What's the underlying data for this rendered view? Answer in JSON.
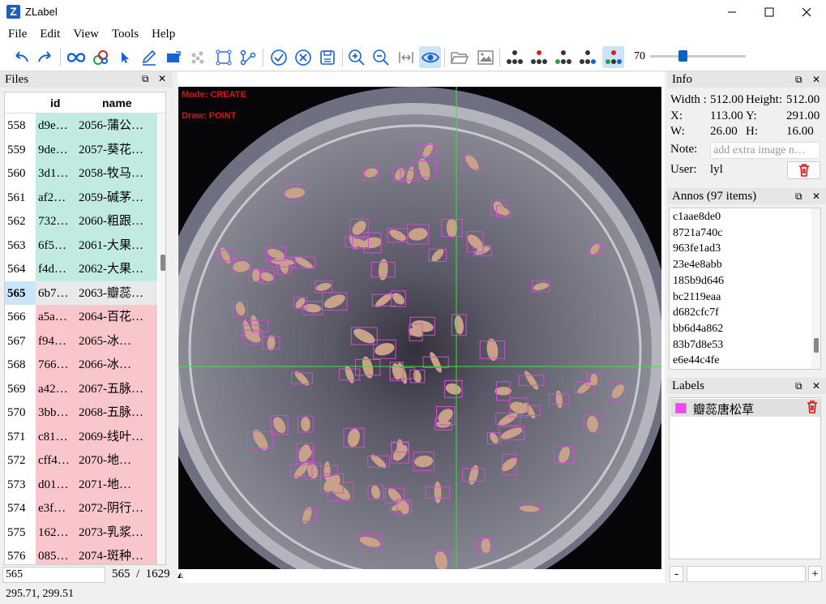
{
  "window": {
    "title": "ZLabel",
    "icon_letter": "Z"
  },
  "menu": [
    "File",
    "Edit",
    "View",
    "Tools",
    "Help"
  ],
  "toolbar": {
    "icons": [
      "undo-icon",
      "redo-icon",
      "infinity-icon",
      "tool-icon",
      "select-arrow-icon",
      "pencil-icon",
      "rectangle-icon",
      "points-icon",
      "bbox-icon",
      "polyline-icon",
      "check-icon",
      "cancel-icon",
      "save-icon",
      "zoom-in-icon",
      "zoom-out-icon",
      "fit-width-icon",
      "eye-icon",
      "folder-open-icon",
      "image-icon"
    ],
    "zoom_value": "70",
    "zoom_fraction": 0.3,
    "accent": "#1a62d2"
  },
  "files": {
    "title": "Files",
    "columns": [
      "id",
      "name"
    ],
    "rows": [
      {
        "n": "558",
        "id": "d9e…",
        "name": "2056-蒲公…",
        "status": "green"
      },
      {
        "n": "559",
        "id": "9de…",
        "name": "2057-葵花…",
        "status": "green"
      },
      {
        "n": "560",
        "id": "3d1…",
        "name": "2058-牧马…",
        "status": "green"
      },
      {
        "n": "561",
        "id": "af2…",
        "name": "2059-碱茅…",
        "status": "green"
      },
      {
        "n": "562",
        "id": "732…",
        "name": "2060-粗跟…",
        "status": "green"
      },
      {
        "n": "563",
        "id": "6f5…",
        "name": "2061-大果…",
        "status": "green"
      },
      {
        "n": "564",
        "id": "f4d…",
        "name": "2062-大果…",
        "status": "green"
      },
      {
        "n": "565",
        "id": "6b7…",
        "name": "2063-瓣蕊…",
        "status": "selected"
      },
      {
        "n": "566",
        "id": "a5a…",
        "name": "2064-百花…",
        "status": "red"
      },
      {
        "n": "567",
        "id": "f94…",
        "name": "2065-冰…",
        "status": "red"
      },
      {
        "n": "568",
        "id": "766…",
        "name": "2066-冰…",
        "status": "red"
      },
      {
        "n": "569",
        "id": "a42…",
        "name": "2067-五脉…",
        "status": "red"
      },
      {
        "n": "570",
        "id": "3bb…",
        "name": "2068-五脉…",
        "status": "red"
      },
      {
        "n": "571",
        "id": "c81…",
        "name": "2069-线叶…",
        "status": "red"
      },
      {
        "n": "572",
        "id": "cff4…",
        "name": "2070-地…",
        "status": "red"
      },
      {
        "n": "573",
        "id": "d01…",
        "name": "2071-地…",
        "status": "red"
      },
      {
        "n": "574",
        "id": "e3f…",
        "name": "2072-阴行…",
        "status": "red"
      },
      {
        "n": "575",
        "id": "162…",
        "name": "2073-乳浆…",
        "status": "red"
      },
      {
        "n": "576",
        "id": "085…",
        "name": "2074-斑种…",
        "status": "red"
      }
    ],
    "page_input": "565",
    "page_current": "565",
    "page_sep": "/",
    "page_total": "1629"
  },
  "canvas": {
    "mode": "Mode: CREATE",
    "draw": "Draw: POINT",
    "box_color": "#d050d0",
    "crosshair_color": "#40e040"
  },
  "info": {
    "title": "Info",
    "width_label": "Width :",
    "width": "512.00",
    "height_label": "Height:",
    "height": "512.00",
    "x_label": "X:",
    "x": "113.00",
    "y_label": "Y:",
    "y": "291.00",
    "w_label": "W:",
    "w": "26.00",
    "h_label": "H:",
    "h": "16.00",
    "note_label": "Note:",
    "note_placeholder": "add extra image n…",
    "user_label": "User:",
    "user": "lyl"
  },
  "annos": {
    "title": "Annos (97 items)",
    "items": [
      "c1aae8de0",
      "8721a740c",
      "963fe1ad3",
      "23e4e8abb",
      "185b9d646",
      "bc2119eaa",
      "d682cfc7f",
      "bb6d4a862",
      "83b7d8e53",
      "e6e44c4fe"
    ]
  },
  "labels": {
    "title": "Labels",
    "items": [
      {
        "name": "瓣蕊唐松草",
        "color": "#ff40ff"
      }
    ],
    "minus": "-",
    "plus": "+"
  },
  "status": {
    "coords": "295.71, 299.51"
  }
}
